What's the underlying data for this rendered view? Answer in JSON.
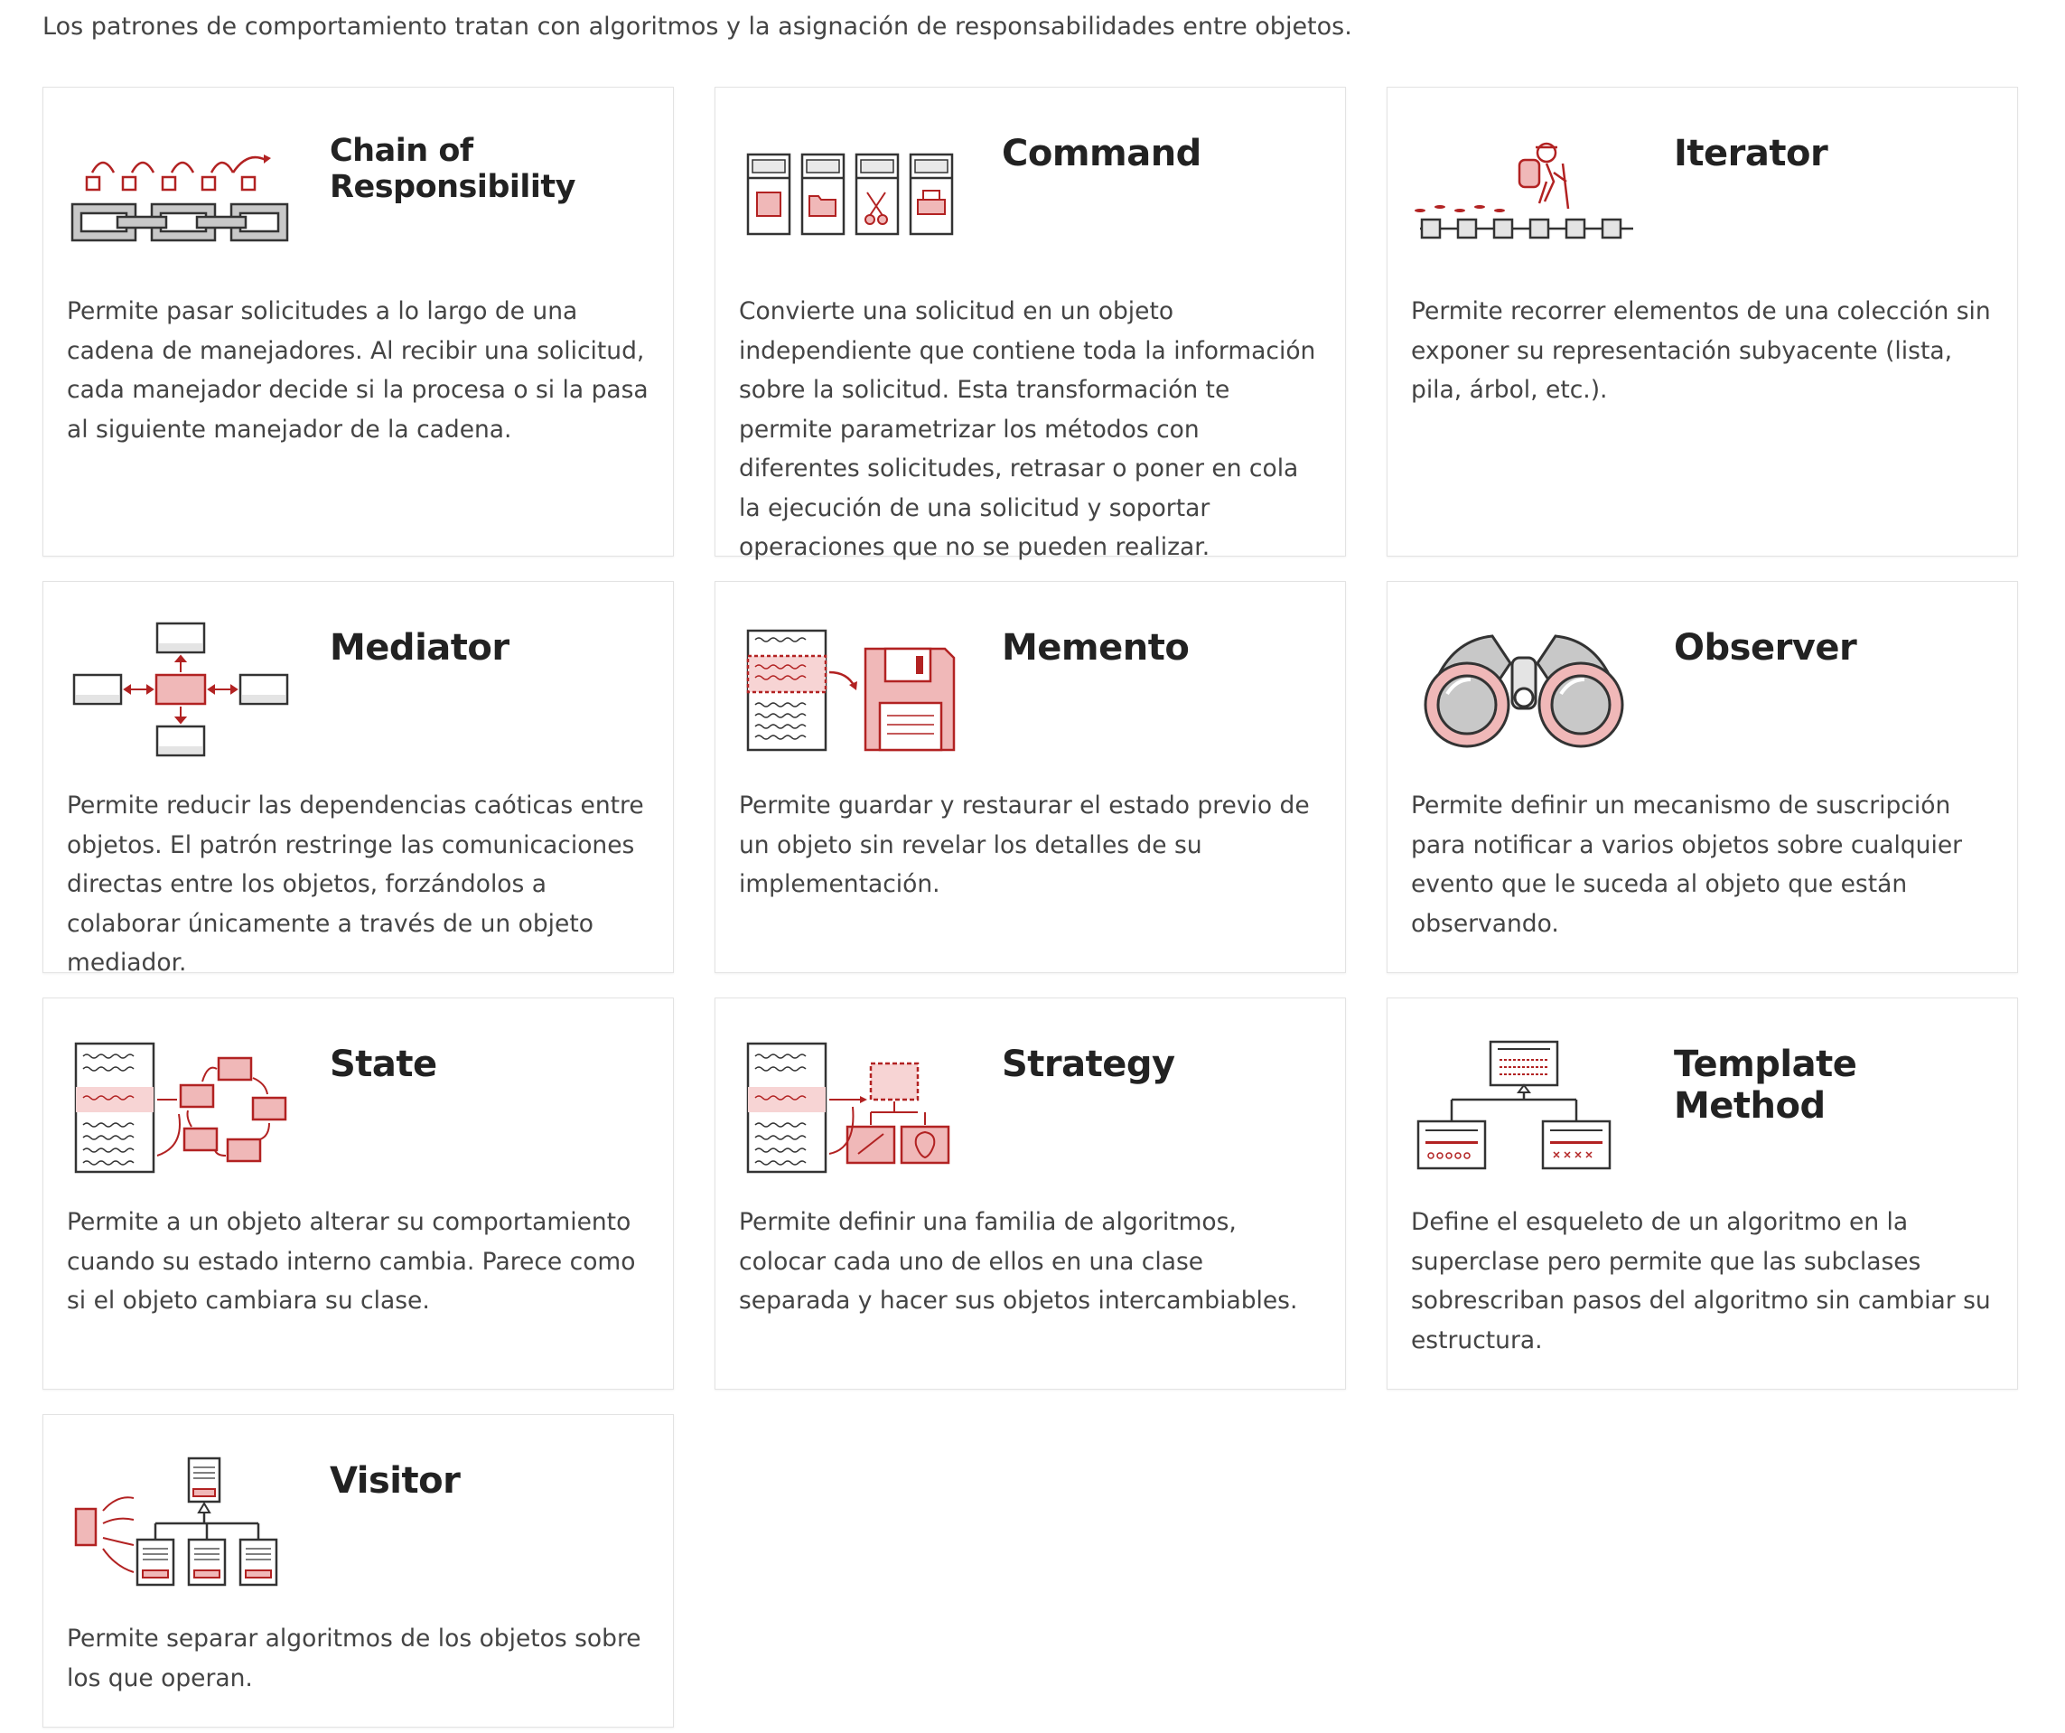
{
  "intro": "Los patrones de comportamiento tratan con algoritmos y la asignación de responsabilidades entre objetos.",
  "colors": {
    "accent": "#b22222",
    "accent_light": "#f0b8b8",
    "dark": "#333333",
    "gray": "#c8c8c8"
  },
  "patterns": [
    {
      "title": "Chain of Responsibility",
      "icon": "chain-icon",
      "description": "Permite pasar solicitudes a lo largo de una cadena de manejadores. Al recibir una solicitud, cada manejador decide si la procesa o si la pasa al siguiente manejador de la cadena."
    },
    {
      "title": "Command",
      "icon": "command-icon",
      "description": "Convierte una solicitud en un objeto independiente que contiene toda la información sobre la solicitud. Esta transformación te permite parametrizar los métodos con diferentes solicitudes, retrasar o poner en cola la ejecución de una solicitud y soportar operaciones que no se pueden realizar."
    },
    {
      "title": "Iterator",
      "icon": "iterator-icon",
      "description": "Permite recorrer elementos de una colección sin exponer su representación subyacente (lista, pila, árbol, etc.)."
    },
    {
      "title": "Mediator",
      "icon": "mediator-icon",
      "description": "Permite reducir las dependencias caóticas entre objetos. El patrón restringe las comunicaciones directas entre los objetos, forzándolos a colaborar únicamente a través de un objeto mediador."
    },
    {
      "title": "Memento",
      "icon": "memento-icon",
      "description": "Permite guardar y restaurar el estado previo de un objeto sin revelar los detalles de su implementación."
    },
    {
      "title": "Observer",
      "icon": "binoculars-icon",
      "description": "Permite definir un mecanismo de suscripción para notificar a varios objetos sobre cualquier evento que le suceda al objeto que están observando."
    },
    {
      "title": "State",
      "icon": "state-icon",
      "description": "Permite a un objeto alterar su comportamiento cuando su estado interno cambia. Parece como si el objeto cambiara su clase."
    },
    {
      "title": "Strategy",
      "icon": "strategy-icon",
      "description": "Permite definir una familia de algoritmos, colocar cada uno de ellos en una clase separada y hacer sus objetos intercambiables."
    },
    {
      "title": "Template Method",
      "icon": "template-method-icon",
      "description": "Define el esqueleto de un algoritmo en la superclase pero permite que las subclases sobrescriban pasos del algoritmo sin cambiar su estructura."
    },
    {
      "title": "Visitor",
      "icon": "visitor-icon",
      "description": "Permite separar algoritmos de los objetos sobre los que operan."
    }
  ]
}
